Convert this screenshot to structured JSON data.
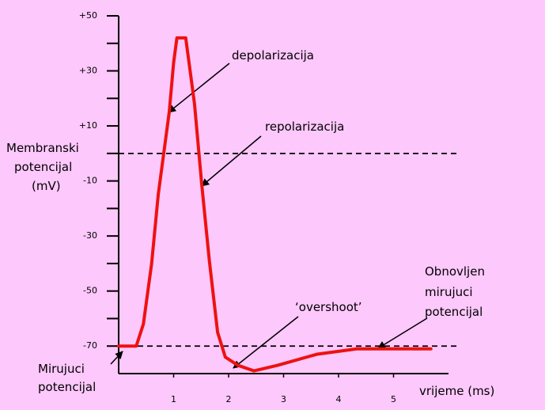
{
  "chart_data": {
    "type": "line",
    "y_label": [
      "Membranski",
      "potencijal",
      "(mV)"
    ],
    "x_label": "vrijeme (ms)",
    "x": [
      0,
      0.32,
      0.45,
      0.6,
      0.72,
      0.92,
      1.0,
      1.06,
      1.22,
      1.38,
      1.51,
      1.65,
      1.8,
      1.94,
      2.17,
      2.46,
      2.89,
      3.6,
      4.33,
      4.9,
      5.68
    ],
    "series": [
      {
        "name": "membranski potencijal",
        "color": "#ee1111",
        "values": [
          -70,
          -70,
          -62,
          -40,
          -15,
          15,
          33,
          42,
          42,
          18,
          -11,
          -39,
          -65,
          -74,
          -77,
          -79,
          -77,
          -73,
          -71,
          -71,
          -71
        ]
      }
    ],
    "xlim": [
      0,
      6
    ],
    "xticks": [
      1,
      2,
      3,
      4,
      5
    ],
    "ylim": [
      -80,
      50
    ],
    "yticks": [
      {
        "value": 50,
        "label": "+50"
      },
      {
        "value": 30,
        "label": "+30"
      },
      {
        "value": 10,
        "label": "+10"
      },
      -10,
      -30,
      -50,
      -70
    ],
    "yminorticks": [
      40,
      20,
      0,
      -20,
      -40,
      -60
    ],
    "reference_lines": [
      0,
      -70
    ],
    "annotations": {
      "depolarization": "depolarizacija",
      "repolarization": "repolarizacija",
      "overshoot": "‘overshoot’",
      "restored": [
        "Obnovljen",
        "mirujuci",
        "potencijal"
      ],
      "resting": [
        "Mirujuci",
        "potencijal"
      ]
    }
  }
}
